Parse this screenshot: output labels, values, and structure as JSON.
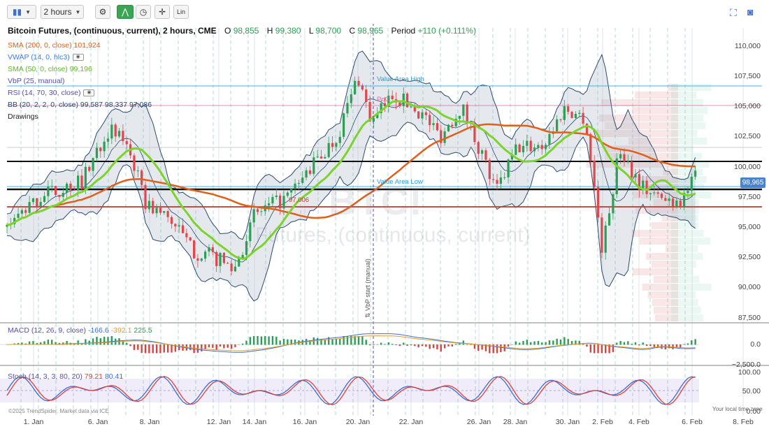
{
  "toolbar": {
    "interval": "2 hours",
    "lin_label": "Lin"
  },
  "title": {
    "name": "Bitcoin Futures, (continuous, current), 2 hours, CME",
    "o_key": "O",
    "o_val": "98,855",
    "h_key": "H",
    "h_val": "99,380",
    "l_key": "L",
    "l_val": "98,700",
    "c_key": "C",
    "c_val": "98,965",
    "period_key": "Period",
    "period_val": "+110 (+0.111%)"
  },
  "indicators": [
    {
      "label": "SMA (200, 0, close)",
      "value": "101,924",
      "color": "#e0601a"
    },
    {
      "label": "VWAP (14, 0, hlc3)",
      "value": "",
      "color": "#3b7ddd"
    },
    {
      "label": "SMA (50, 0, close)",
      "value": "99,196",
      "color": "#7bd42c"
    },
    {
      "label": "VbP (25, manual)",
      "value": "",
      "color": "#5a4fa0"
    },
    {
      "label": "RSI (14, 70, 30, close)",
      "value": "",
      "color": "#5a4fa0"
    },
    {
      "label": "BB (20, 2, 2, 0, close)",
      "value": "99,587 98,337 97,086",
      "color": "#2b4a6b"
    },
    {
      "label": "Drawings",
      "value": "",
      "color": "#222"
    }
  ],
  "price_axis": [
    "110,000",
    "107,500",
    "105,000",
    "102,500",
    "100,000",
    "97,500",
    "95,000",
    "92,500",
    "90,000",
    "87,500"
  ],
  "current_price": "98,965",
  "date_axis": [
    "1. Jan",
    "6. Jan",
    "8. Jan",
    "12. Jan",
    "14. Jan",
    "16. Jan",
    "20. Jan",
    "22. Jan",
    "26. Jan",
    "28. Jan",
    "30. Jan",
    "2. Feb",
    "4. Feb",
    "6. Feb",
    "8. Feb"
  ],
  "annotations": {
    "value_area_high": "Value Area High",
    "poc": "PoC",
    "value_area_low": "Value Area Low",
    "level": "97,006",
    "vbp_start": "⇅ VbP start (manual)"
  },
  "watermark": {
    "symbol": "BTC!",
    "text": "Futures, (continuous, current)"
  },
  "macd": {
    "label": "MACD (12, 26, 9, close)",
    "v1": "-166.6",
    "v2": "-392.1",
    "v3": "225.5",
    "axis": [
      "0.0",
      "−2,500.0"
    ]
  },
  "stoch": {
    "label": "Stoch (14, 3, 3, 80, 20)",
    "v1": "79.21",
    "v2": "80.41",
    "axis": [
      "100.00",
      "50.00",
      "0.00"
    ]
  },
  "footer": {
    "copyright": "©2025 TrendSpider. Market data via ICE",
    "timezone": "Your local time zone"
  },
  "colors": {
    "up": "#2e9e57",
    "down": "#e0464b",
    "sma200": "#e0601a",
    "sma50": "#7bd42c",
    "bb": "#2b4a6b",
    "accent": "#3aa655"
  }
}
